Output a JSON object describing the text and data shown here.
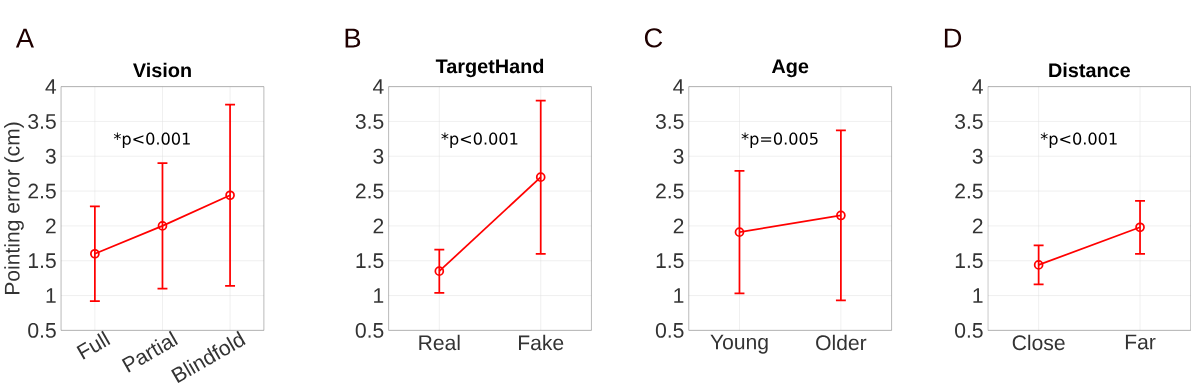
{
  "chart_data": [
    {
      "type": "line",
      "title": "Vision",
      "ylabel": "Pointing error (cm)",
      "categories": [
        "Full",
        "Partial",
        "Blindfold"
      ],
      "values": [
        1.6,
        2.0,
        2.44
      ],
      "errors": [
        0.68,
        0.9,
        1.3
      ],
      "color": "#ff0000",
      "marker": "circle",
      "grid": true,
      "ylim": [
        0.5,
        4
      ],
      "yticks": [
        0.5,
        1,
        1.5,
        2,
        2.5,
        3,
        3.5,
        4
      ],
      "annotations": [
        "A",
        "*p<0.001"
      ]
    },
    {
      "type": "line",
      "title": "TargetHand",
      "categories": [
        "Real",
        "Fake"
      ],
      "values": [
        1.35,
        2.7
      ],
      "errors": [
        0.31,
        1.1
      ],
      "color": "#ff0000",
      "marker": "circle",
      "grid": true,
      "ylim": [
        0.5,
        4
      ],
      "yticks": [
        0.5,
        1,
        1.5,
        2,
        2.5,
        3,
        3.5,
        4
      ],
      "annotations": [
        "B",
        "*p<0.001"
      ]
    },
    {
      "type": "line",
      "title": "Age",
      "categories": [
        "Young",
        "Older"
      ],
      "values": [
        1.91,
        2.15
      ],
      "errors": [
        0.88,
        1.22
      ],
      "color": "#ff0000",
      "marker": "circle",
      "grid": true,
      "ylim": [
        0.5,
        4
      ],
      "yticks": [
        0.5,
        1,
        1.5,
        2,
        2.5,
        3,
        3.5,
        4
      ],
      "annotations": [
        "C",
        "*p=0.005"
      ]
    },
    {
      "type": "line",
      "title": "Distance",
      "categories": [
        "Close",
        "Far"
      ],
      "values": [
        1.44,
        1.98
      ],
      "errors": [
        0.28,
        0.38
      ],
      "color": "#ff0000",
      "marker": "circle",
      "grid": true,
      "ylim": [
        0.5,
        4
      ],
      "yticks": [
        0.5,
        1,
        1.5,
        2,
        2.5,
        3,
        3.5,
        4
      ],
      "annotations": [
        "D",
        "*p<0.001"
      ]
    }
  ]
}
